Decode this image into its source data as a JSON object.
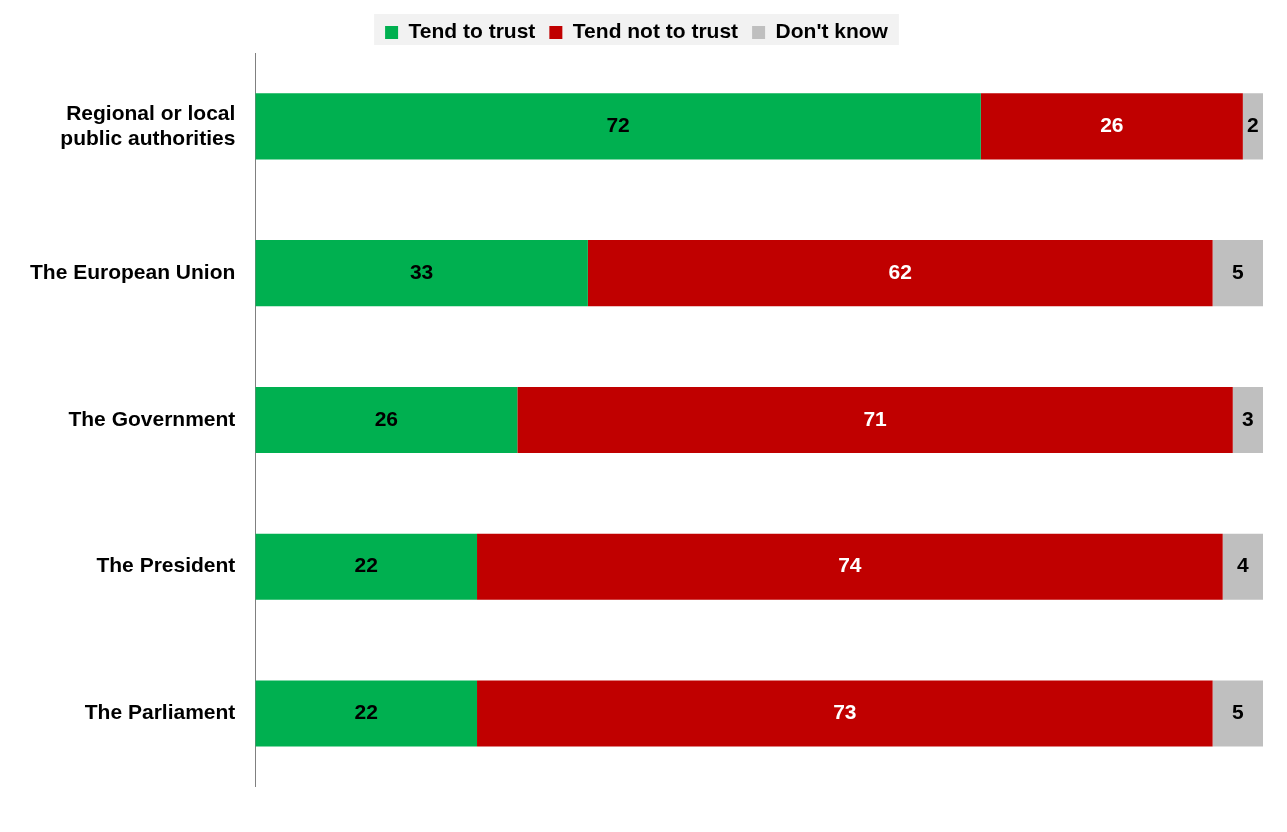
{
  "chart_data": {
    "type": "bar",
    "orientation": "horizontal",
    "stacked": true,
    "categories": [
      "Regional or local\npublic authorities",
      "The European Union",
      "The Government",
      "The President",
      "The Parliament"
    ],
    "series": [
      {
        "name": "Tend to trust",
        "color": "#00b050",
        "values": [
          72,
          33,
          26,
          22,
          22
        ]
      },
      {
        "name": "Tend not to trust",
        "color": "#c00000",
        "values": [
          26,
          62,
          71,
          74,
          73
        ]
      },
      {
        "name": "Don't know",
        "color": "#bfbfbf",
        "values": [
          2,
          5,
          3,
          4,
          5
        ]
      }
    ],
    "data_labels": true,
    "legend": "top",
    "grid": false,
    "tick_labels": "y"
  }
}
